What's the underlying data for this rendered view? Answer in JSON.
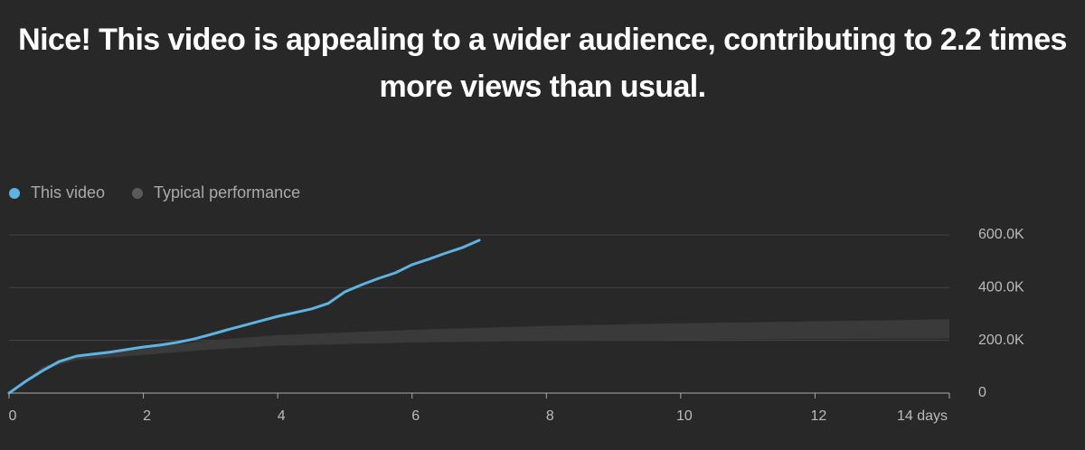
{
  "chart_data": {
    "type": "line",
    "title": "Nice! This video is appealing to a wider audience, contributing to 2.2 times more views than usual.",
    "series": [
      {
        "name": "This video",
        "color": "#5eb3e0",
        "x": [
          0,
          0.25,
          0.5,
          0.75,
          1,
          1.25,
          1.5,
          1.75,
          2,
          2.25,
          2.5,
          2.75,
          3,
          3.25,
          3.5,
          3.75,
          4,
          4.25,
          4.5,
          4.75,
          5,
          5.25,
          5.5,
          5.75,
          6,
          6.25,
          6.5,
          6.75,
          7
        ],
        "values": [
          0,
          45000,
          85000,
          120000,
          140000,
          148000,
          155000,
          165000,
          175000,
          182000,
          192000,
          205000,
          222000,
          240000,
          257000,
          274000,
          291000,
          305000,
          319000,
          340000,
          384000,
          411000,
          435000,
          456000,
          487000,
          508000,
          531000,
          552000,
          580000
        ]
      },
      {
        "name": "Typical performance",
        "color": "#5a5a5a",
        "band_color": "#3a3a3a",
        "x": [
          0,
          0.5,
          1,
          2,
          3,
          4,
          6,
          8,
          10,
          12,
          14
        ],
        "lower": [
          0,
          90000,
          125000,
          145000,
          165000,
          180000,
          192000,
          198000,
          202000,
          205000,
          207000
        ],
        "upper": [
          0,
          100000,
          140000,
          170000,
          200000,
          220000,
          240000,
          255000,
          265000,
          272000,
          280000
        ]
      }
    ],
    "xlim": [
      0,
      14
    ],
    "xticks": [
      0,
      2,
      4,
      6,
      8,
      10,
      12,
      {
        "value": 14,
        "label": "14 days"
      }
    ],
    "ylim": [
      0,
      600000
    ],
    "yticks": [
      0,
      {
        "value": 200000,
        "label": "200.0K"
      },
      {
        "value": 400000,
        "label": "400.0K"
      },
      {
        "value": 600000,
        "label": "600.0K"
      }
    ],
    "grid": true
  }
}
